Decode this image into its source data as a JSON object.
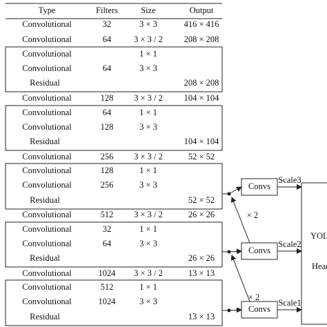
{
  "table": {
    "columns": [
      "Type",
      "Filters",
      "Size",
      "Output"
    ],
    "rows": [
      {
        "type": "Convolutional",
        "filters": "32",
        "size": "3 × 3",
        "output": "416 × 416"
      },
      {
        "type": "Convolutional",
        "filters": "64",
        "size": "3 × 3 / 2",
        "output": "208 × 208"
      },
      {
        "type": "Convolutional",
        "size": "1 × 1"
      },
      {
        "type": "Convolutional",
        "filters": "64",
        "size": "3 × 3"
      },
      {
        "type": "Residual",
        "output": "208 × 208"
      },
      {
        "type": "Convolutional",
        "filters": "128",
        "size": "3 × 3 / 2",
        "output": "104 × 104"
      },
      {
        "type": "Convolutional",
        "filters": "64",
        "size": "1 × 1"
      },
      {
        "type": "Convolutional",
        "filters": "128",
        "size": "3 × 3"
      },
      {
        "type": "Residual",
        "output": "104 × 104"
      },
      {
        "type": "Convolutional",
        "filters": "256",
        "size": "3 × 3 / 2",
        "output": "52 × 52"
      },
      {
        "type": "Convolutional",
        "filters": "128",
        "size": "1 × 1"
      },
      {
        "type": "Convolutional",
        "filters": "256",
        "size": "3 × 3"
      },
      {
        "type": "Residual",
        "output": "52 × 52"
      },
      {
        "type": "Convolutional",
        "filters": "512",
        "size": "3 × 3 / 2",
        "output": "26 × 26"
      },
      {
        "type": "Convolutional",
        "filters": "32",
        "size": "1 × 1"
      },
      {
        "type": "Convolutional",
        "filters": "64",
        "size": "3 × 3"
      },
      {
        "type": "Residual",
        "output": "26 × 26"
      },
      {
        "type": "Convolutional",
        "filters": "1024",
        "size": "3 × 3 / 2",
        "output": "13 × 13"
      },
      {
        "type": "Convolutional",
        "filters": "512",
        "size": "1 × 1"
      },
      {
        "type": "Convolutional",
        "filters": "1024",
        "size": "3 × 3"
      },
      {
        "type": "Residual",
        "output": "13 × 13"
      }
    ]
  },
  "diagram": {
    "convs": [
      "Convs",
      "Convs",
      "Convs"
    ],
    "scales": [
      "Scale3",
      "Scale2",
      "Scale1"
    ],
    "upsample": [
      "× 2",
      "× 2"
    ],
    "head": [
      "YOLO",
      "Head"
    ]
  }
}
